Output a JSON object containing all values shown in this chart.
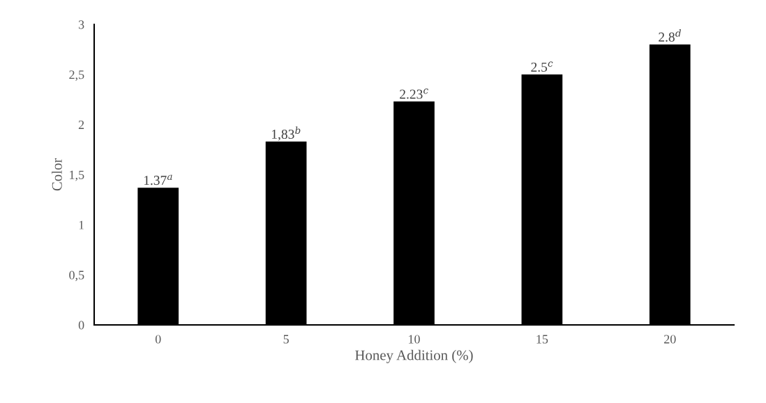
{
  "chart_data": {
    "type": "bar",
    "xlabel": "Honey Addition (%)",
    "ylabel": "Color",
    "categories": [
      "0",
      "5",
      "10",
      "15",
      "20"
    ],
    "values": [
      1.37,
      1.83,
      2.23,
      2.5,
      2.8
    ],
    "value_labels": [
      "1.37$^{a}$",
      "1,83$^{b}$",
      "2.23$^{c}$",
      "2.5$^{c}$",
      "2.8$^{d}$"
    ],
    "color": "#000000",
    "ylim": [
      0,
      3
    ],
    "yticks": [
      0,
      {
        "value": 0.5,
        "label": "0,5"
      },
      1,
      {
        "value": 1.5,
        "label": "1,5"
      },
      2,
      {
        "value": 2.5,
        "label": "2,5"
      },
      3
    ],
    "grid": false
  }
}
